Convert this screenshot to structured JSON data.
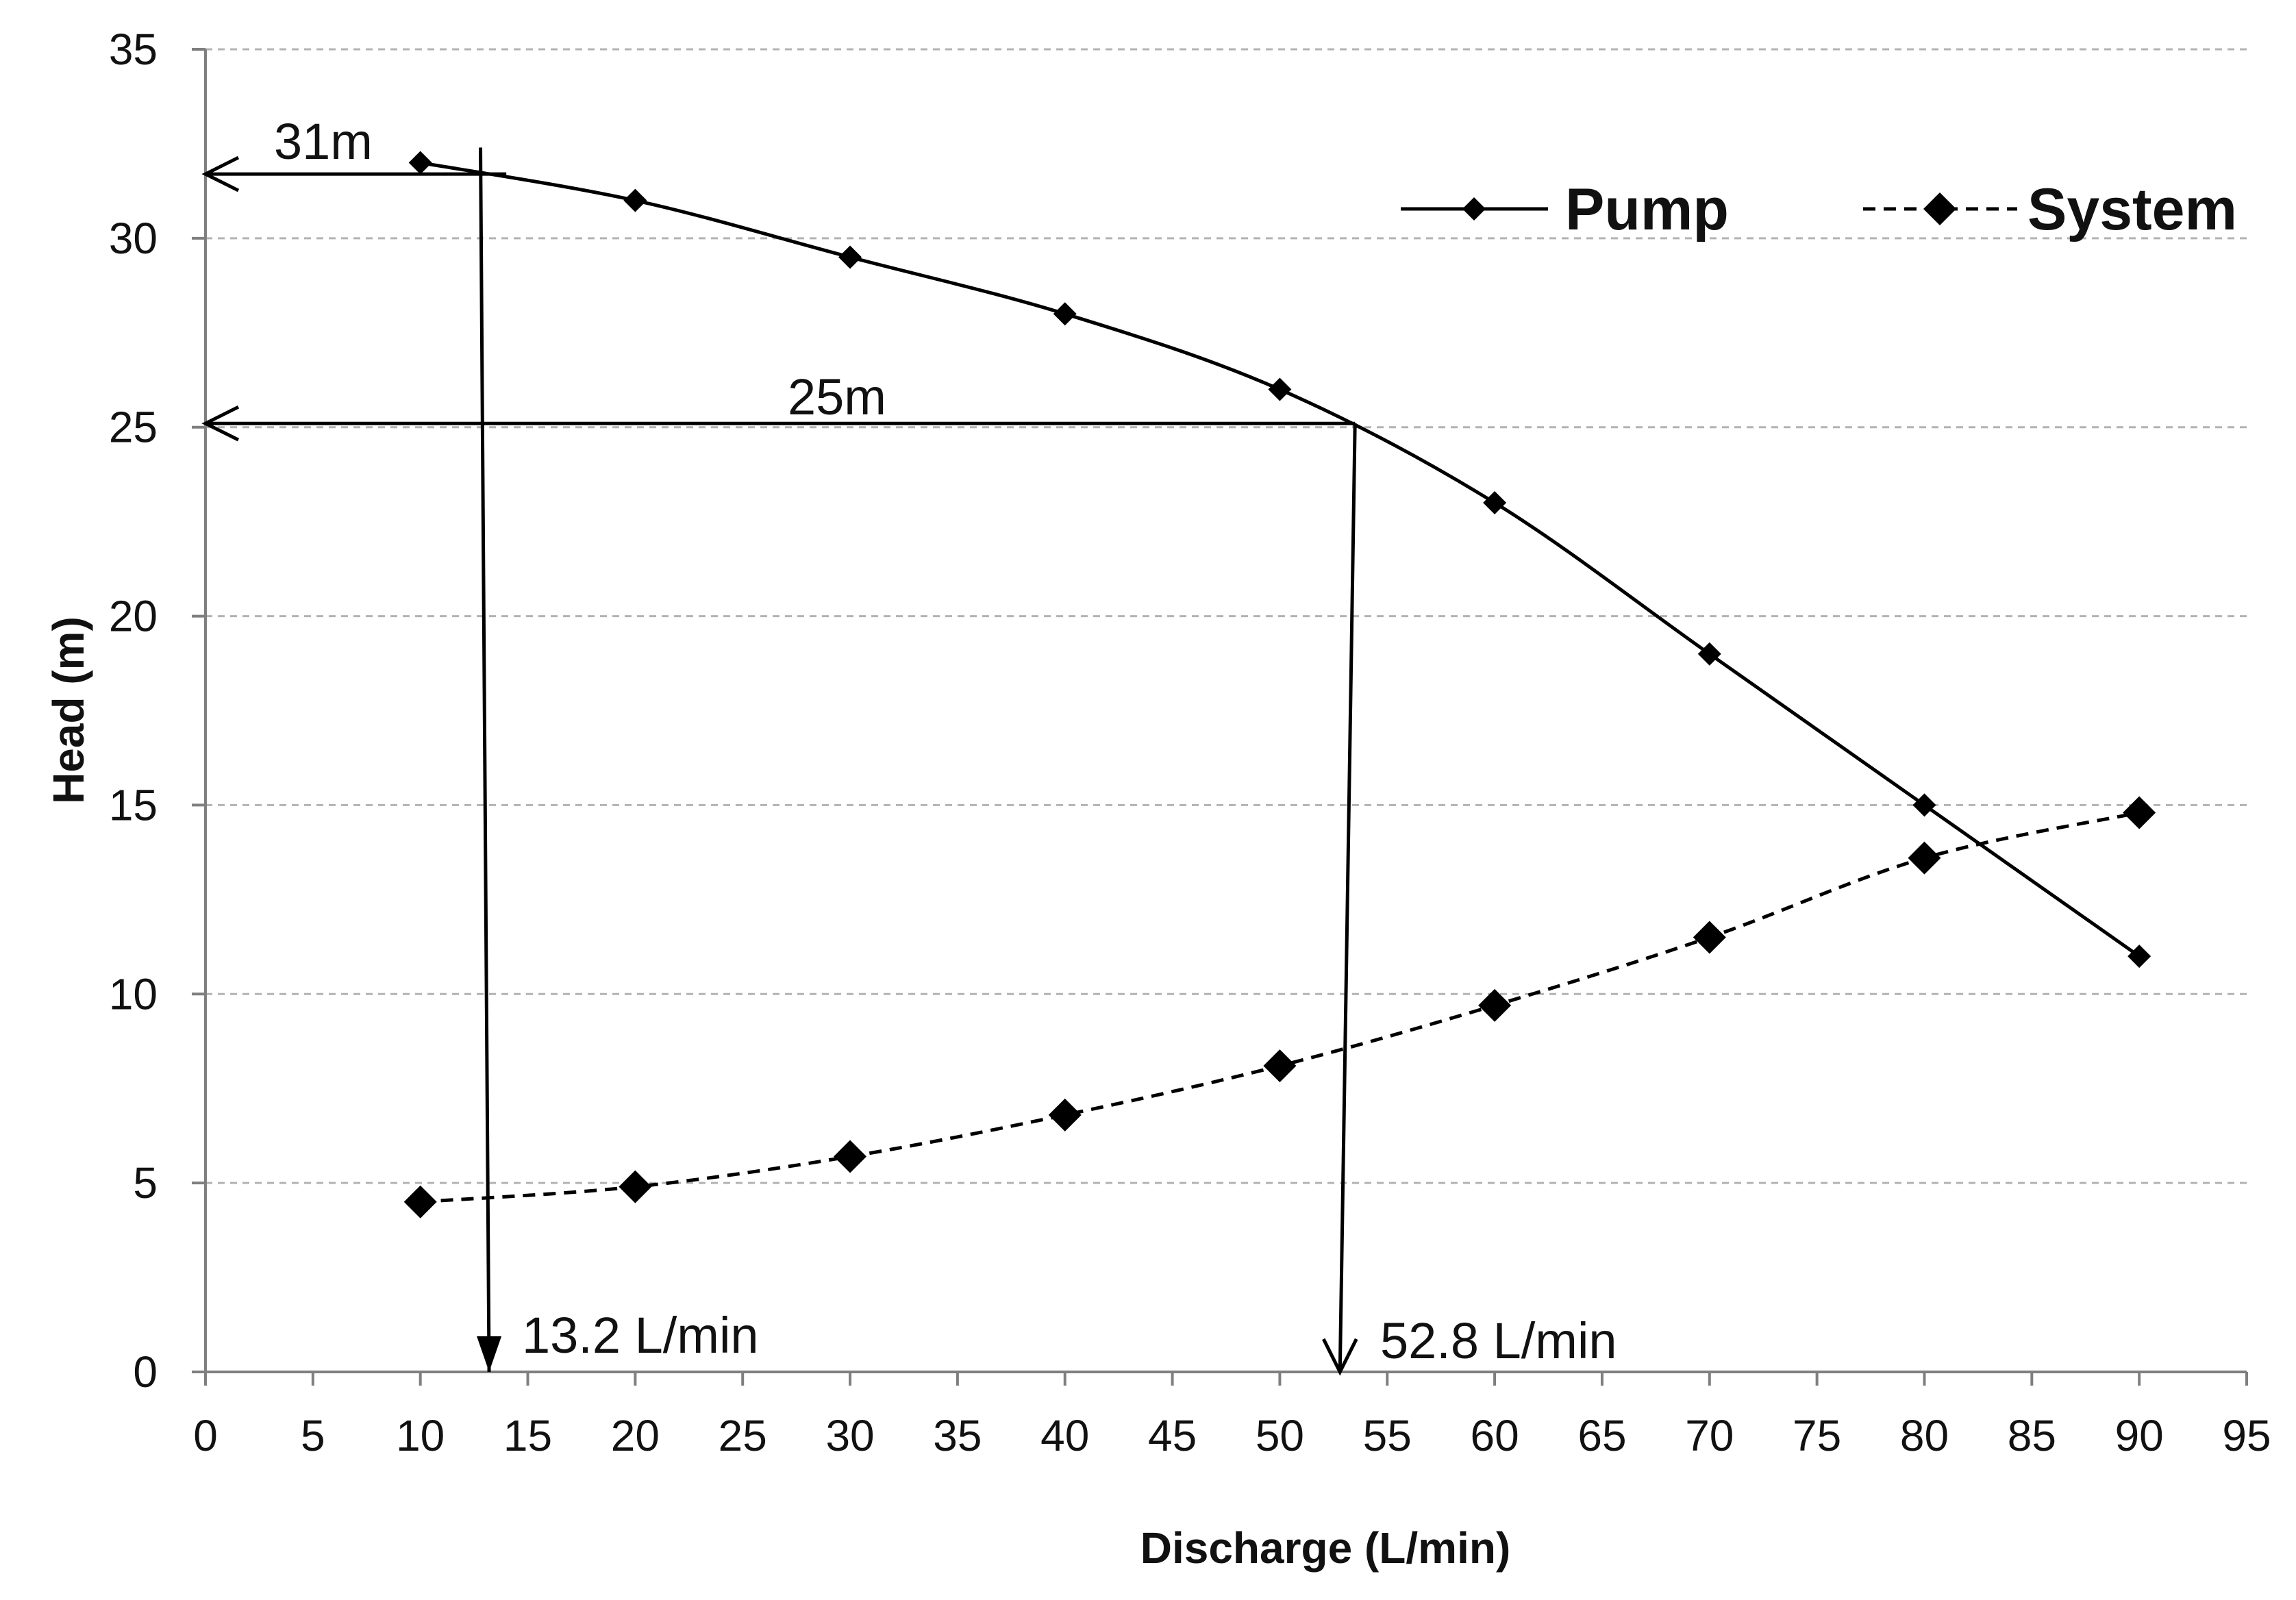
{
  "chart_data": {
    "type": "line",
    "title": "",
    "xlabel": "Discharge (L/min)",
    "ylabel": "Head (m)",
    "xlim": [
      0,
      95
    ],
    "ylim": [
      0,
      35
    ],
    "xticks": [
      0,
      5,
      10,
      15,
      20,
      25,
      30,
      35,
      40,
      45,
      50,
      55,
      60,
      65,
      70,
      75,
      80,
      85,
      90,
      95
    ],
    "yticks": [
      0,
      5,
      10,
      15,
      20,
      25,
      30,
      35
    ],
    "grid": "horizontal",
    "legend_position": "top-right",
    "series": [
      {
        "name": "Pump",
        "line_style": "solid",
        "marker": "diamond",
        "color": "#000000",
        "x": [
          10,
          20,
          30,
          40,
          50,
          60,
          70,
          80,
          90
        ],
        "y": [
          32,
          31,
          29.5,
          28,
          26,
          23,
          19,
          15,
          11
        ]
      },
      {
        "name": "System",
        "line_style": "dashed",
        "marker": "diamond",
        "color": "#000000",
        "x": [
          10,
          20,
          30,
          40,
          50,
          60,
          70,
          80,
          90
        ],
        "y": [
          4.5,
          4.9,
          5.7,
          6.8,
          8.1,
          9.7,
          11.5,
          13.6,
          14.8
        ]
      }
    ],
    "annotations": [
      {
        "name": "head-31",
        "label": "31m",
        "horizontal_arrow": {
          "from_x": 14,
          "to_x": 0,
          "y": 31.7
        },
        "vertical_arrow": {
          "x_top": 12.8,
          "y_top": 32.4,
          "x_bottom": 13.2,
          "y_bottom": 0
        }
      },
      {
        "name": "head-25",
        "label": "25m",
        "horizontal_arrow": {
          "from_x": 53.5,
          "to_x": 0,
          "y": 25.1
        },
        "vertical_arrow": {
          "x_top": 53.5,
          "y_top": 25.1,
          "x_bottom": 52.8,
          "y_bottom": 0
        }
      },
      {
        "name": "flow-13",
        "label": "13.2 L/min",
        "x": 14.2,
        "y": 0.6
      },
      {
        "name": "flow-52",
        "label": "52.8 L/min",
        "x": 54,
        "y": 0.6
      }
    ]
  }
}
